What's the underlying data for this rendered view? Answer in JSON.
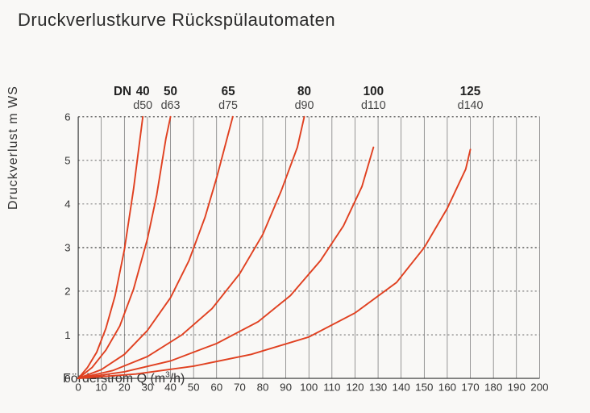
{
  "title": "Druckverlustkurve Rückspülautomaten",
  "xlabel_html": "Förderstrom Q (m³/h)",
  "ylabel": "Druckverlust   m WS",
  "chart": {
    "type": "line",
    "background_color": "#f9f8f6",
    "axis_color": "#333333",
    "grid_solid_color": "#666666",
    "grid_dotted_color": "#555555",
    "curve_color": "#e04020",
    "curve_width": 2,
    "axis_width": 1.2,
    "grid_width": 0.7,
    "xlim": [
      0,
      200
    ],
    "ylim": [
      0,
      6
    ],
    "xtick_step": 10,
    "ytick_step": 1,
    "y_major_refs": [
      3,
      6
    ],
    "top_labels": {
      "dn_header": "DN",
      "series": [
        {
          "dn": "40",
          "d": "d50",
          "x": 28
        },
        {
          "dn": "50",
          "d": "d63",
          "x": 40
        },
        {
          "dn": "65",
          "d": "d75",
          "x": 65
        },
        {
          "dn": "80",
          "d": "d90",
          "x": 98
        },
        {
          "dn": "100",
          "d": "d110",
          "x": 128
        },
        {
          "dn": "125",
          "d": "d140",
          "x": 170
        }
      ]
    },
    "series": [
      {
        "name": "DN40",
        "points": [
          [
            0,
            0
          ],
          [
            4,
            0.25
          ],
          [
            8,
            0.6
          ],
          [
            12,
            1.15
          ],
          [
            16,
            1.9
          ],
          [
            20,
            2.95
          ],
          [
            24,
            4.35
          ],
          [
            28,
            6.0
          ]
        ]
      },
      {
        "name": "DN50",
        "points": [
          [
            0,
            0
          ],
          [
            6,
            0.25
          ],
          [
            12,
            0.65
          ],
          [
            18,
            1.2
          ],
          [
            24,
            2.05
          ],
          [
            30,
            3.2
          ],
          [
            34,
            4.2
          ],
          [
            38,
            5.5
          ],
          [
            40,
            6.0
          ]
        ]
      },
      {
        "name": "DN65",
        "points": [
          [
            0,
            0
          ],
          [
            10,
            0.2
          ],
          [
            20,
            0.55
          ],
          [
            30,
            1.1
          ],
          [
            40,
            1.85
          ],
          [
            48,
            2.7
          ],
          [
            55,
            3.7
          ],
          [
            60,
            4.6
          ],
          [
            65,
            5.6
          ],
          [
            67,
            6.0
          ]
        ]
      },
      {
        "name": "DN80",
        "points": [
          [
            0,
            0
          ],
          [
            15,
            0.18
          ],
          [
            30,
            0.5
          ],
          [
            45,
            1.0
          ],
          [
            58,
            1.6
          ],
          [
            70,
            2.4
          ],
          [
            80,
            3.3
          ],
          [
            88,
            4.3
          ],
          [
            95,
            5.3
          ],
          [
            98,
            6.0
          ]
        ]
      },
      {
        "name": "DN100",
        "points": [
          [
            0,
            0
          ],
          [
            20,
            0.15
          ],
          [
            40,
            0.4
          ],
          [
            60,
            0.8
          ],
          [
            78,
            1.3
          ],
          [
            92,
            1.9
          ],
          [
            105,
            2.7
          ],
          [
            115,
            3.5
          ],
          [
            123,
            4.4
          ],
          [
            128,
            5.3
          ]
        ]
      },
      {
        "name": "DN125",
        "points": [
          [
            0,
            0
          ],
          [
            25,
            0.1
          ],
          [
            50,
            0.28
          ],
          [
            75,
            0.55
          ],
          [
            100,
            0.95
          ],
          [
            120,
            1.5
          ],
          [
            138,
            2.2
          ],
          [
            150,
            3.0
          ],
          [
            160,
            3.9
          ],
          [
            168,
            4.8
          ],
          [
            170,
            5.25
          ]
        ]
      }
    ]
  },
  "label_fontsize": 14,
  "title_fontsize": 22
}
